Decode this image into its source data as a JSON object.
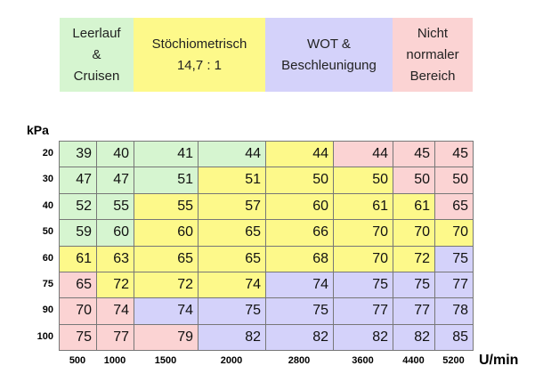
{
  "legend": [
    {
      "lines": [
        "Leerlauf",
        "&",
        "Cruisen"
      ],
      "color": "#d6f5d0"
    },
    {
      "lines": [
        "Stöchiometrisch",
        "14,7 : 1"
      ],
      "color": "#fdf98a"
    },
    {
      "lines": [
        "WOT &",
        "Beschleunigung"
      ],
      "color": "#d4d2fa"
    },
    {
      "lines": [
        "Nicht",
        "normaler",
        "Bereich"
      ],
      "color": "#fbd3d3"
    }
  ],
  "table": {
    "row_unit": "kPa",
    "column_unit": "U/min",
    "columns": [
      "500",
      "1000",
      "1500",
      "2000",
      "2800",
      "3600",
      "4400",
      "5200"
    ],
    "rows": [
      {
        "label": "20",
        "cells": [
          "39",
          "40",
          "41",
          "44",
          "44",
          "44",
          "45",
          "45"
        ],
        "colors": [
          "#d6f5d0",
          "#d6f5d0",
          "#d6f5d0",
          "#d6f5d0",
          "#fdf98a",
          "#fbd3d3",
          "#fbd3d3",
          "#fbd3d3"
        ]
      },
      {
        "label": "30",
        "cells": [
          "47",
          "47",
          "51",
          "51",
          "50",
          "50",
          "50",
          "50"
        ],
        "colors": [
          "#d6f5d0",
          "#d6f5d0",
          "#d6f5d0",
          "#fdf98a",
          "#fdf98a",
          "#fdf98a",
          "#fbd3d3",
          "#fbd3d3"
        ]
      },
      {
        "label": "40",
        "cells": [
          "52",
          "55",
          "55",
          "57",
          "60",
          "61",
          "61",
          "65"
        ],
        "colors": [
          "#d6f5d0",
          "#d6f5d0",
          "#fdf98a",
          "#fdf98a",
          "#fdf98a",
          "#fdf98a",
          "#fdf98a",
          "#fbd3d3"
        ]
      },
      {
        "label": "50",
        "cells": [
          "59",
          "60",
          "60",
          "65",
          "66",
          "70",
          "70",
          "70"
        ],
        "colors": [
          "#d6f5d0",
          "#d6f5d0",
          "#fdf98a",
          "#fdf98a",
          "#fdf98a",
          "#fdf98a",
          "#fdf98a",
          "#fdf98a"
        ]
      },
      {
        "label": "60",
        "cells": [
          "61",
          "63",
          "65",
          "65",
          "68",
          "70",
          "72",
          "75"
        ],
        "colors": [
          "#fdf98a",
          "#fdf98a",
          "#fdf98a",
          "#fdf98a",
          "#fdf98a",
          "#fdf98a",
          "#fdf98a",
          "#d4d2fa"
        ]
      },
      {
        "label": "75",
        "cells": [
          "65",
          "72",
          "72",
          "74",
          "74",
          "75",
          "75",
          "77"
        ],
        "colors": [
          "#fbd3d3",
          "#fdf98a",
          "#fdf98a",
          "#fdf98a",
          "#d4d2fa",
          "#d4d2fa",
          "#d4d2fa",
          "#d4d2fa"
        ]
      },
      {
        "label": "90",
        "cells": [
          "70",
          "74",
          "74",
          "75",
          "75",
          "77",
          "77",
          "78"
        ],
        "colors": [
          "#fbd3d3",
          "#fbd3d3",
          "#d4d2fa",
          "#d4d2fa",
          "#d4d2fa",
          "#d4d2fa",
          "#d4d2fa",
          "#d4d2fa"
        ]
      },
      {
        "label": "100",
        "cells": [
          "75",
          "77",
          "79",
          "82",
          "82",
          "82",
          "82",
          "85"
        ],
        "colors": [
          "#fbd3d3",
          "#fbd3d3",
          "#fbd3d3",
          "#d4d2fa",
          "#d4d2fa",
          "#d4d2fa",
          "#d4d2fa",
          "#d4d2fa"
        ]
      }
    ]
  }
}
